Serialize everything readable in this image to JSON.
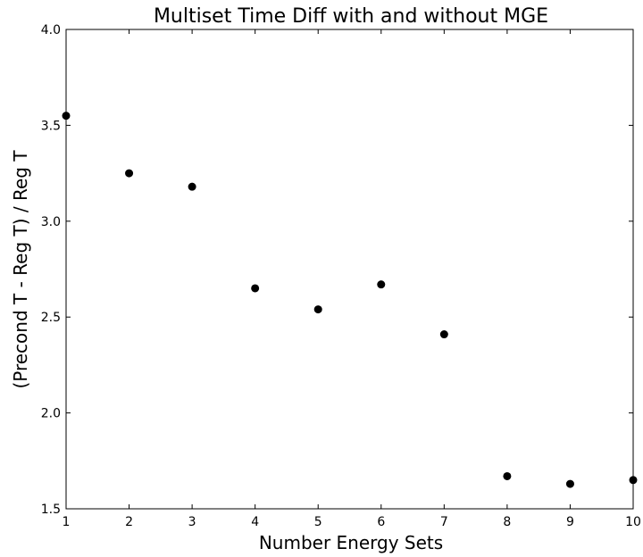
{
  "chart_data": {
    "type": "scatter",
    "title": "Multiset Time Diff with and without MGE",
    "xlabel": "Number Energy Sets",
    "ylabel": "(Precond T - Reg T) / Reg T",
    "xlim": [
      1,
      10
    ],
    "ylim": [
      1.5,
      4.0
    ],
    "xticks": [
      1,
      2,
      3,
      4,
      5,
      6,
      7,
      8,
      9,
      10
    ],
    "yticks": [
      1.5,
      2.0,
      2.5,
      3.0,
      3.5,
      4.0
    ],
    "xtick_labels": [
      "1",
      "2",
      "3",
      "4",
      "5",
      "6",
      "7",
      "8",
      "9",
      "10"
    ],
    "ytick_labels": [
      "1.5",
      "2.0",
      "2.5",
      "3.0",
      "3.5",
      "4.0"
    ],
    "grid": false,
    "marker_color": "#000000",
    "series": [
      {
        "x": [
          1,
          2,
          3,
          4,
          5,
          6,
          7,
          8,
          9,
          10
        ],
        "y": [
          3.55,
          3.25,
          3.18,
          2.65,
          2.54,
          2.67,
          2.41,
          1.67,
          1.63,
          1.65
        ]
      }
    ]
  }
}
